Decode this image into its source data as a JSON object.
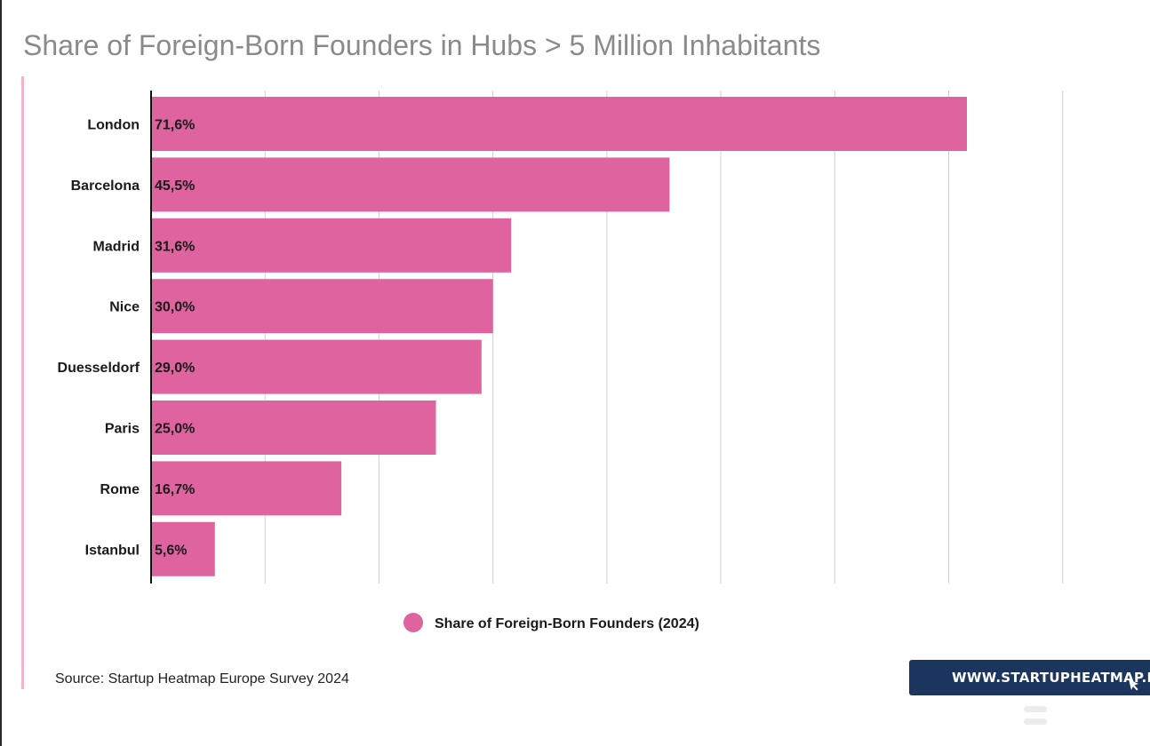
{
  "title": "Share of Foreign-Born Founders in Hubs > 5 Million Inhabitants",
  "source": "Source: Startup Heatmap Europe Survey 2024",
  "badge": {
    "text": "WWW.STARTUPHEATMAP.EU",
    "icon": "cursor-arrow-icon"
  },
  "colors": {
    "bar": "#de639e",
    "title": "#8a8a8a",
    "badge": "#1c355e",
    "accent": "#f2b3cf"
  },
  "chart_data": {
    "type": "bar",
    "orientation": "horizontal",
    "title": "Share of Foreign-Born Founders in Hubs > 5 Million Inhabitants",
    "categories": [
      "London",
      "Barcelona",
      "Madrid",
      "Nice",
      "Duesseldorf",
      "Paris",
      "Rome",
      "Istanbul"
    ],
    "series": [
      {
        "name": "Share of Foreign-Born Founders (2024)",
        "values": [
          71.6,
          45.5,
          31.6,
          30.0,
          29.0,
          25.0,
          16.7,
          5.6
        ],
        "labels": [
          "71,6%",
          "45,5%",
          "31,6%",
          "30,0%",
          "29,0%",
          "25,0%",
          "16,7%",
          "5,6%"
        ]
      }
    ],
    "xlim": [
      0,
      80
    ],
    "grid": true,
    "legend": "bottom-center",
    "xlabel": "",
    "ylabel": ""
  }
}
